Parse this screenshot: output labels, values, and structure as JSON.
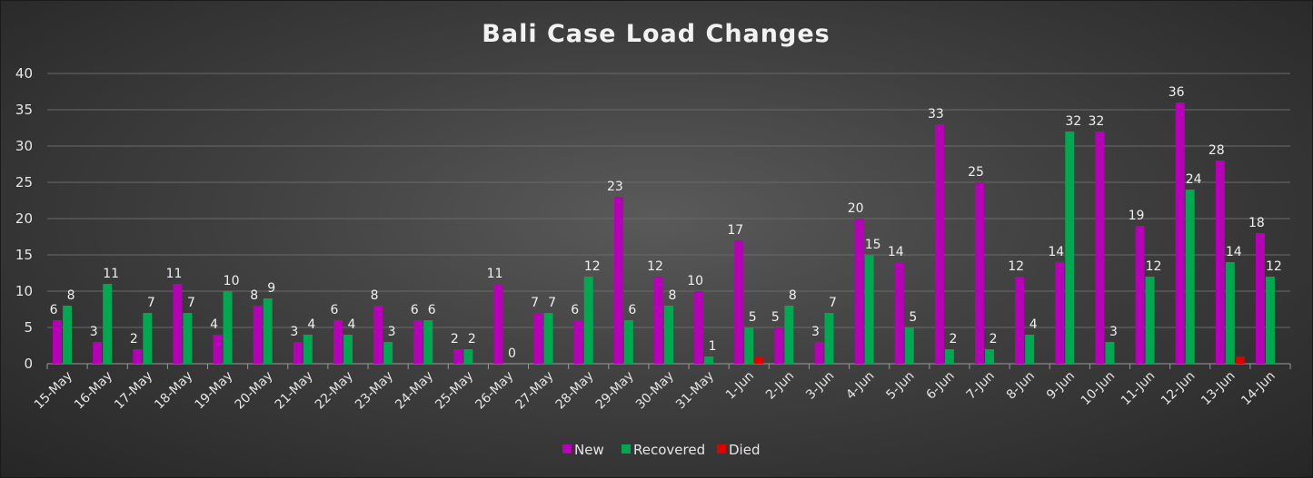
{
  "chart_data": {
    "type": "bar",
    "title": "Bali Case Load Changes",
    "xlabel": "",
    "ylabel": "",
    "ylim": [
      0,
      40
    ],
    "yticks": [
      0,
      5,
      10,
      15,
      20,
      25,
      30,
      35,
      40
    ],
    "grid": true,
    "legend_position": "bottom",
    "categories": [
      "15-May",
      "16-May",
      "17-May",
      "18-May",
      "19-May",
      "20-May",
      "21-May",
      "22-May",
      "23-May",
      "24-May",
      "25-May",
      "26-May",
      "27-May",
      "28-May",
      "29-May",
      "30-May",
      "31-May",
      "1-Jun",
      "2-Jun",
      "3-Jun",
      "4-Jun",
      "5-Jun",
      "6-Jun",
      "7-Jun",
      "8-Jun",
      "9-Jun",
      "10-Jun",
      "11-Jun",
      "12-Jun",
      "13-Jun",
      "14-Jun"
    ],
    "series": [
      {
        "name": "New",
        "color": "#b800b8",
        "values": [
          6,
          3,
          2,
          11,
          4,
          8,
          3,
          6,
          8,
          6,
          2,
          11,
          7,
          6,
          23,
          12,
          10,
          17,
          5,
          3,
          20,
          14,
          33,
          25,
          12,
          14,
          32,
          19,
          36,
          28,
          18
        ],
        "labels": [
          "6",
          "3",
          "2",
          "11",
          "4",
          "8",
          "3",
          "6",
          "8",
          "6",
          "2",
          "11",
          "7",
          "6",
          "23",
          "12",
          "10",
          "17",
          "5",
          "3",
          "20",
          "14",
          "33",
          "25",
          "12",
          "14",
          "32",
          "19",
          "36",
          "28",
          "18"
        ]
      },
      {
        "name": "Recovered",
        "color": "#00a850",
        "values": [
          8,
          11,
          7,
          7,
          10,
          9,
          4,
          4,
          3,
          6,
          2,
          0,
          7,
          12,
          6,
          8,
          1,
          5,
          8,
          7,
          15,
          5,
          2,
          2,
          4,
          32,
          3,
          12,
          24,
          14,
          12
        ],
        "labels": [
          "8",
          "11",
          "7",
          "7",
          "10",
          "9",
          "4",
          "4",
          "3",
          "6",
          "2",
          "0",
          "7",
          "12",
          "6",
          "8",
          "1",
          "5",
          "8",
          "7",
          "15",
          "5",
          "2",
          "2",
          "4",
          "32",
          "3",
          "12",
          "24",
          "14",
          "12"
        ]
      },
      {
        "name": "Died",
        "color": "#e00000",
        "values": [
          0,
          0,
          0,
          0,
          0,
          0,
          0,
          0,
          0,
          0,
          0,
          0,
          0,
          0,
          0,
          0,
          0,
          1,
          0,
          0,
          0,
          0,
          0,
          0,
          0,
          0,
          0,
          0,
          0,
          1,
          0
        ]
      }
    ]
  }
}
